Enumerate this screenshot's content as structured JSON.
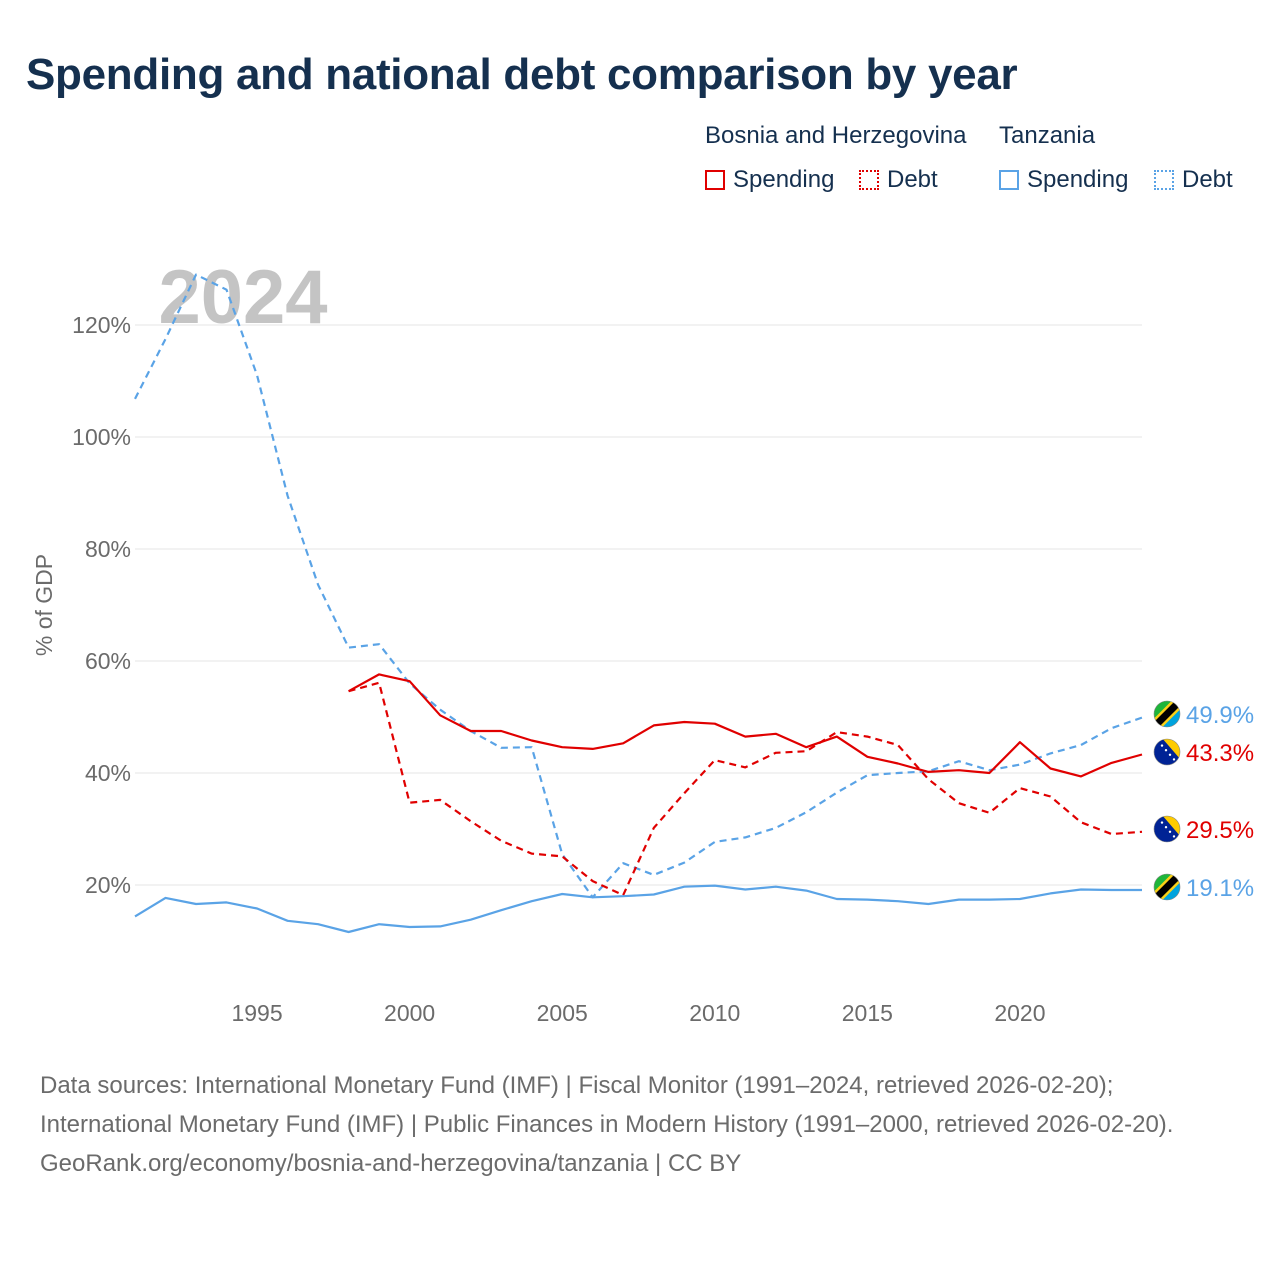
{
  "title": "Spending and national debt comparison by year",
  "legend": {
    "groups": [
      {
        "name": "Bosnia and Herzegovina",
        "color": "#e00000",
        "items": [
          {
            "label": "Spending",
            "style": "solid"
          },
          {
            "label": "Debt",
            "style": "dotted"
          }
        ]
      },
      {
        "name": "Tanzania",
        "color": "#5aa3e6",
        "items": [
          {
            "label": "Spending",
            "style": "solid"
          },
          {
            "label": "Debt",
            "style": "dotted"
          }
        ]
      }
    ]
  },
  "chart_data": {
    "type": "line",
    "year_watermark": "2024",
    "ylabel": "% of GDP",
    "xlim": [
      1991,
      2024
    ],
    "ylim": [
      11,
      128
    ],
    "x_ticks": [
      1995,
      2000,
      2005,
      2010,
      2015,
      2020
    ],
    "y_ticks": [
      20,
      40,
      60,
      80,
      100,
      120
    ],
    "y_tick_labels": [
      "20%",
      "40%",
      "60%",
      "80%",
      "100%",
      "120%"
    ],
    "series": [
      {
        "name": "Tanzania Debt",
        "country": "Tanzania",
        "kind": "debt",
        "color": "#5aa3e6",
        "dash": "dashed",
        "flag": "tanzania",
        "end_label": "49.9%",
        "x": [
          1991,
          1992,
          1993,
          1994,
          1995,
          1996,
          1997,
          1998,
          1999,
          2000,
          2001,
          2002,
          2003,
          2004,
          2005,
          2006,
          2007,
          2008,
          2009,
          2010,
          2011,
          2012,
          2013,
          2014,
          2015,
          2016,
          2017,
          2018,
          2019,
          2020,
          2021,
          2022,
          2023,
          2024
        ],
        "values": [
          106.8,
          117.5,
          129,
          126.3,
          111,
          89.5,
          73.6,
          62.4,
          63,
          56,
          51.3,
          47.5,
          44.5,
          44.6,
          25.5,
          17.8,
          23.9,
          21.8,
          24,
          27.7,
          28.5,
          30.2,
          33,
          36.5,
          39.6,
          40,
          40.3,
          42.1,
          40.5,
          41.5,
          43.5,
          45,
          48,
          49.9
        ]
      },
      {
        "name": "Bosnia and Herzegovina Spending",
        "country": "Bosnia and Herzegovina",
        "kind": "spending",
        "color": "#e00000",
        "dash": "solid",
        "flag": "bosnia",
        "end_label": "43.3%",
        "x": [
          1998,
          1999,
          2000,
          2001,
          2002,
          2003,
          2004,
          2005,
          2006,
          2007,
          2008,
          2009,
          2010,
          2011,
          2012,
          2013,
          2014,
          2015,
          2016,
          2017,
          2018,
          2019,
          2020,
          2021,
          2022,
          2023,
          2024
        ],
        "values": [
          54.6,
          57.6,
          56.4,
          50.3,
          47.5,
          47.5,
          45.8,
          44.6,
          44.3,
          45.3,
          48.5,
          49.1,
          48.8,
          46.5,
          47,
          44.6,
          46.5,
          42.9,
          41.7,
          40.2,
          40.5,
          40,
          45.5,
          40.8,
          39.4,
          41.8,
          43.3
        ]
      },
      {
        "name": "Bosnia and Herzegovina Debt",
        "country": "Bosnia and Herzegovina",
        "kind": "debt",
        "color": "#e00000",
        "dash": "dashed",
        "flag": "bosnia",
        "end_label": "29.5%",
        "x": [
          1998,
          1999,
          2000,
          2001,
          2002,
          2003,
          2004,
          2005,
          2006,
          2007,
          2008,
          2009,
          2010,
          2011,
          2012,
          2013,
          2014,
          2015,
          2016,
          2017,
          2018,
          2019,
          2020,
          2021,
          2022,
          2023,
          2024
        ],
        "values": [
          54.6,
          56.1,
          34.7,
          35.2,
          31.4,
          27.9,
          25.6,
          25.1,
          20.7,
          18.2,
          30.2,
          36.4,
          42.3,
          41,
          43.6,
          43.9,
          47.3,
          46.5,
          45,
          38.9,
          34.6,
          32.9,
          37.3,
          35.8,
          31.2,
          29.1,
          29.5
        ]
      },
      {
        "name": "Tanzania Spending",
        "country": "Tanzania",
        "kind": "spending",
        "color": "#5aa3e6",
        "dash": "solid",
        "flag": "tanzania",
        "end_label": "19.1%",
        "x": [
          1991,
          1992,
          1993,
          1994,
          1995,
          1996,
          1997,
          1998,
          1999,
          2000,
          2001,
          2002,
          2003,
          2004,
          2005,
          2006,
          2007,
          2008,
          2009,
          2010,
          2011,
          2012,
          2013,
          2014,
          2015,
          2016,
          2017,
          2018,
          2019,
          2020,
          2021,
          2022,
          2023,
          2024
        ],
        "values": [
          14.4,
          17.7,
          16.6,
          16.9,
          15.8,
          13.6,
          13,
          11.6,
          13,
          12.5,
          12.6,
          13.8,
          15.5,
          17.1,
          18.4,
          17.8,
          18,
          18.3,
          19.7,
          19.9,
          19.2,
          19.7,
          19,
          17.5,
          17.4,
          17.1,
          16.6,
          17.4,
          17.4,
          17.5,
          18.5,
          19.2,
          19.1,
          19.1
        ]
      }
    ]
  },
  "footer": {
    "sources": "Data sources: International Monetary Fund (IMF) | Fiscal Monitor (1991–2024, retrieved 2026-02-20); International Monetary Fund (IMF) | Public Finances in Modern History (1991–2000, retrieved 2026-02-20).",
    "credit": "GeoRank.org/economy/bosnia-and-herzegovina/tanzania | CC BY"
  }
}
